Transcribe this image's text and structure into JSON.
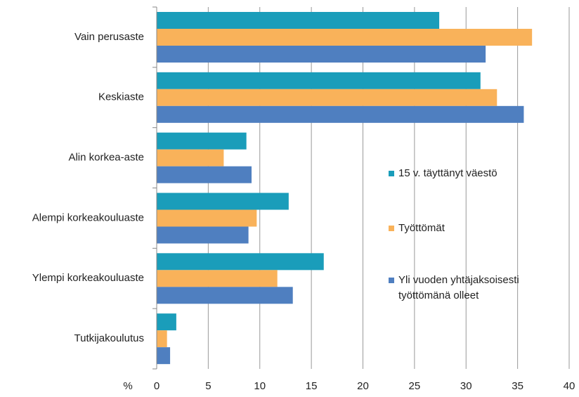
{
  "chart_data": {
    "type": "hbar",
    "categories": [
      "Vain perusaste",
      "Keskiaste",
      "Alin korkea-aste",
      "Alempi korkeakouluaste",
      "Ylempi korkeakouluaste",
      "Tutkijakoulutus"
    ],
    "series": [
      {
        "name": "15 v. täyttänyt väestö",
        "color": "#1a9dba",
        "values": [
          27.4,
          31.4,
          8.7,
          12.8,
          16.2,
          1.9
        ]
      },
      {
        "name": "Työttömät",
        "color": "#f9b25a",
        "values": [
          36.4,
          33.0,
          6.5,
          9.7,
          11.7,
          1.0
        ]
      },
      {
        "name": "Yli vuoden yhtäjaksoisesti työttömänä olleet",
        "color": "#4f7fc0",
        "values": [
          31.9,
          35.6,
          9.2,
          8.9,
          13.2,
          1.3
        ]
      }
    ],
    "x_label": "%",
    "xlim": [
      0,
      40
    ],
    "xticks": [
      0,
      5,
      10,
      15,
      20,
      25,
      30,
      35,
      40
    ],
    "grid": true
  }
}
